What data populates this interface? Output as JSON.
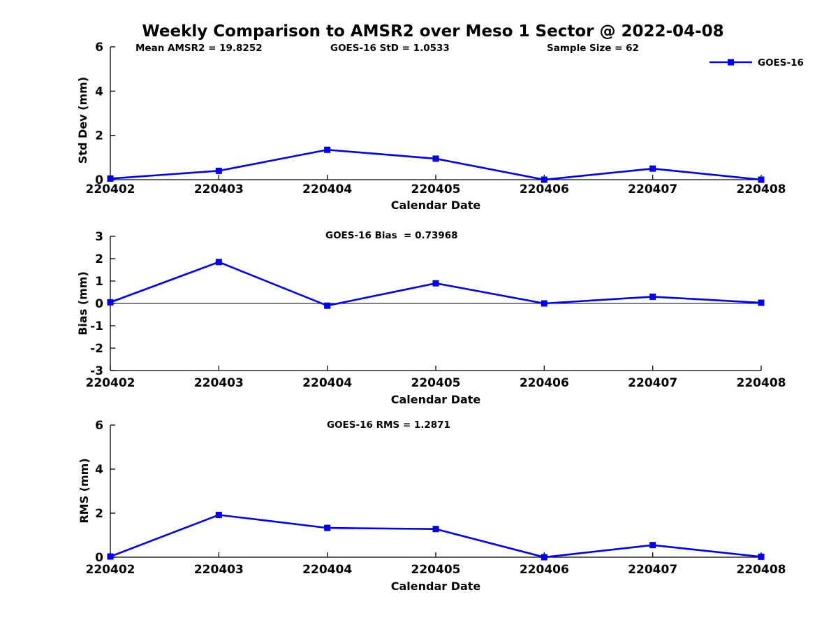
{
  "title": "Weekly Comparison to AMSR2 over Meso 1 Sector @ 2022-04-08",
  "legend": {
    "label": "GOES-16",
    "color": "#0000EE",
    "position": "top-right"
  },
  "colors": {
    "line": "#0000EE",
    "axis": "#000000",
    "background": "#ffffff"
  },
  "chart_data": [
    {
      "type": "line",
      "categories": [
        "220402",
        "220403",
        "220404",
        "220405",
        "220406",
        "220407",
        "220408"
      ],
      "series": [
        {
          "name": "GOES-16",
          "color": "#0000EE",
          "values": [
            0.05,
            0.4,
            1.35,
            0.95,
            0.0,
            0.5,
            0.0
          ]
        }
      ],
      "xlabel": "Calendar Date",
      "ylabel": "Std Dev (mm)",
      "ylim": [
        0,
        6
      ],
      "yticks": [
        0,
        2,
        4,
        6
      ],
      "grid": false,
      "zero_line": false,
      "marker": "square",
      "annotations": [
        "Mean AMSR2 = 19.8252",
        "GOES-16 StD = 1.0533",
        "Sample Size = 62"
      ]
    },
    {
      "type": "line",
      "categories": [
        "220402",
        "220403",
        "220404",
        "220405",
        "220406",
        "220407",
        "220408"
      ],
      "series": [
        {
          "name": "GOES-16",
          "color": "#0000EE",
          "values": [
            0.05,
            1.85,
            -0.1,
            0.9,
            0.0,
            0.3,
            0.03
          ]
        }
      ],
      "xlabel": "Calendar Date",
      "ylabel": "Bias (mm)",
      "ylim": [
        -3,
        3
      ],
      "yticks": [
        -3,
        -2,
        -1,
        0,
        1,
        2,
        3
      ],
      "grid": false,
      "zero_line": true,
      "marker": "square",
      "annotations": [
        "GOES-16 Bias  = 0.73968"
      ]
    },
    {
      "type": "line",
      "categories": [
        "220402",
        "220403",
        "220404",
        "220405",
        "220406",
        "220407",
        "220408"
      ],
      "series": [
        {
          "name": "GOES-16",
          "color": "#0000EE",
          "values": [
            0.03,
            1.92,
            1.33,
            1.28,
            0.0,
            0.55,
            0.02
          ]
        }
      ],
      "xlabel": "Calendar Date",
      "ylabel": "RMS (mm)",
      "ylim": [
        0,
        6
      ],
      "yticks": [
        0,
        2,
        4,
        6
      ],
      "grid": false,
      "zero_line": false,
      "marker": "square",
      "annotations": [
        "GOES-16 RMS = 1.2871"
      ]
    }
  ]
}
